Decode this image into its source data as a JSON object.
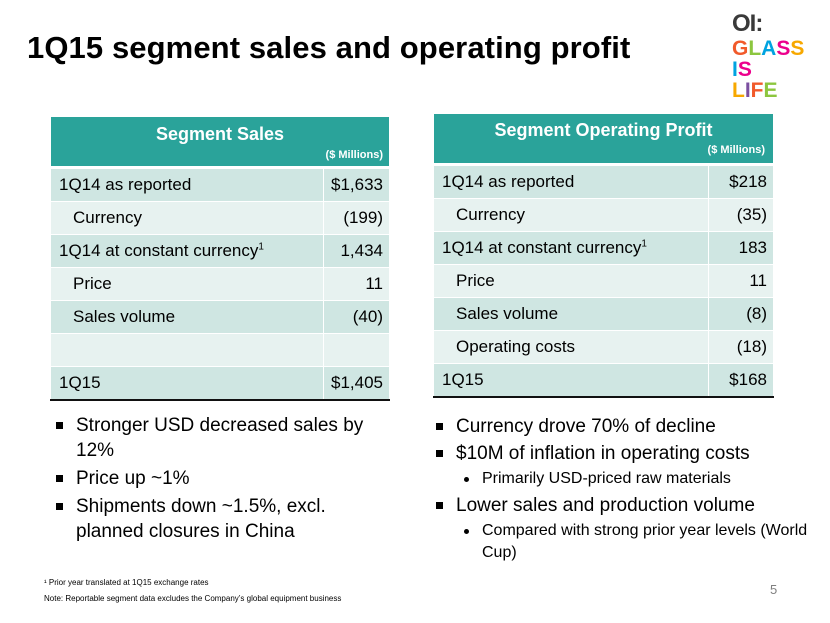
{
  "title": "1Q15 segment sales and operating profit",
  "logo": {
    "oi": "OI:",
    "line1": "GLASS",
    "line2": "IS",
    "line3": "LIFE",
    "colors": [
      "#f15a2b",
      "#8cc63f",
      "#00a3e0",
      "#ec008c",
      "#f7a800",
      "#7b4fa0"
    ]
  },
  "sales_table": {
    "title": "Segment Sales",
    "unit": "($ Millions)",
    "rows": [
      {
        "label": "1Q14 as reported",
        "value": "$1,633",
        "indent": false
      },
      {
        "label": "Currency",
        "value": "(199)",
        "indent": true
      },
      {
        "label": "1Q14 at constant currency",
        "sup": "1",
        "value": "1,434",
        "indent": false
      },
      {
        "label": "Price",
        "value": "11",
        "indent": true
      },
      {
        "label": "Sales volume",
        "value": "(40)",
        "indent": true
      },
      {
        "label": "",
        "value": "",
        "indent": false
      },
      {
        "label": "1Q15",
        "value": "$1,405",
        "indent": false
      }
    ]
  },
  "profit_table": {
    "title": "Segment Operating Profit",
    "unit": "($ Millions)",
    "rows": [
      {
        "label": "1Q14 as reported",
        "value": "$218",
        "indent": false
      },
      {
        "label": "Currency",
        "value": "(35)",
        "indent": true
      },
      {
        "label": "1Q14 at constant currency",
        "sup": "1",
        "value": "183",
        "indent": false
      },
      {
        "label": "Price",
        "value": "11",
        "indent": true
      },
      {
        "label": "Sales volume",
        "value": "(8)",
        "indent": true
      },
      {
        "label": "Operating costs",
        "value": "(18)",
        "indent": true
      },
      {
        "label": "1Q15",
        "value": "$168",
        "indent": false
      }
    ]
  },
  "bullets_left": [
    "Stronger USD decreased sales by 12%",
    "Price up ~1%",
    "Shipments down ~1.5%, excl. planned closures in China"
  ],
  "bullets_right": [
    {
      "text": "Currency drove 70% of decline",
      "sub": false
    },
    {
      "text": "$10M of inflation in operating costs",
      "sub": false
    },
    {
      "text": "Primarily USD-priced raw materials",
      "sub": true
    },
    {
      "text": "Lower sales and production volume",
      "sub": false
    },
    {
      "text": "Compared with strong prior year levels (World Cup)",
      "sub": true
    }
  ],
  "footnote1": "¹ Prior year translated at 1Q15 exchange rates",
  "footnote2": "Note:  Reportable segment data excludes the Company’s global equipment business",
  "page_number": "5"
}
